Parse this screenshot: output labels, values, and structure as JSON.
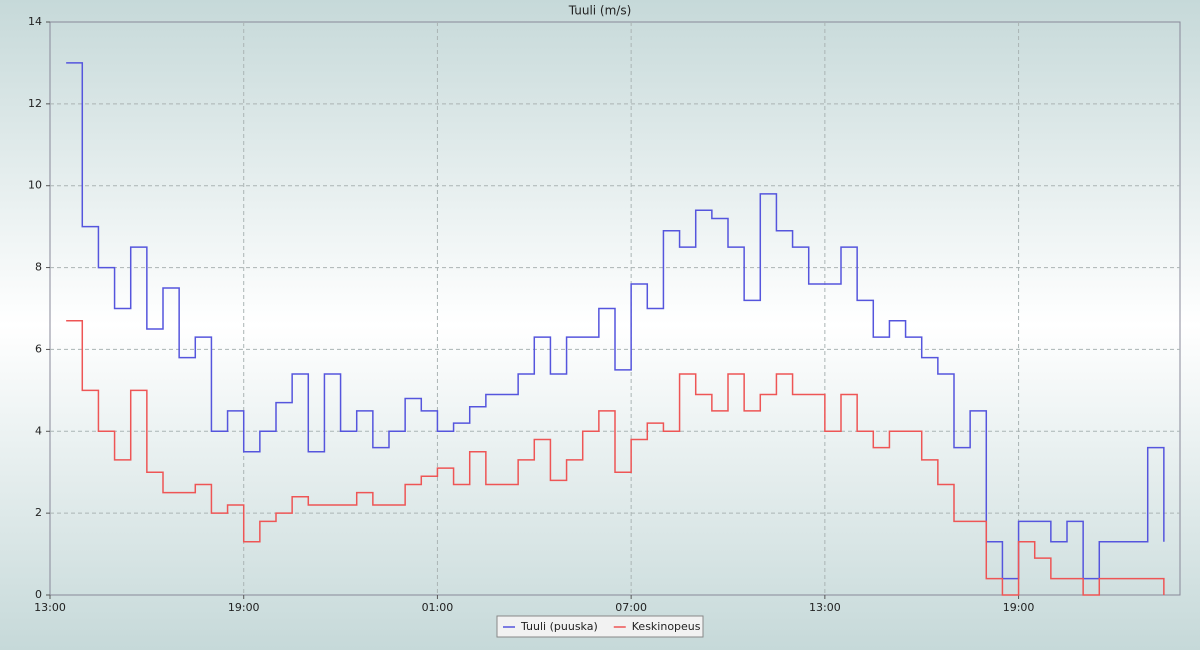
{
  "chart_data": {
    "type": "line",
    "step": true,
    "title": "Tuuli (m/s)",
    "x": [
      0.5,
      1,
      1.5,
      2,
      2.5,
      3,
      3.5,
      4,
      4.5,
      5,
      5.5,
      6,
      6.5,
      7,
      7.5,
      8,
      8.5,
      9,
      9.5,
      10,
      10.5,
      11,
      11.5,
      12,
      12.5,
      13,
      13.5,
      14,
      14.5,
      15,
      15.5,
      16,
      16.5,
      17,
      17.5,
      18,
      18.5,
      19,
      19.5,
      20,
      20.5,
      21,
      21.5,
      22,
      22.5,
      23,
      23.5,
      24,
      24.5,
      25,
      25.5,
      26,
      26.5,
      27,
      27.5,
      28,
      28.5,
      29,
      29.5,
      30,
      30.5,
      31,
      31.5,
      32,
      32.5,
      33,
      33.5,
      34,
      34.5
    ],
    "series": [
      {
        "name": "Tuuli (puuska)",
        "color": "#5555dd",
        "values": [
          13,
          9,
          8,
          7,
          8.5,
          6.5,
          7.5,
          5.8,
          6.3,
          4,
          4.5,
          3.5,
          4,
          4.7,
          5.4,
          3.5,
          5.4,
          4,
          4.5,
          3.6,
          4,
          4.8,
          4.5,
          4,
          4.2,
          4.6,
          4.9,
          4.9,
          5.4,
          6.3,
          5.4,
          6.3,
          6.3,
          7,
          5.5,
          7.6,
          7,
          8.9,
          8.5,
          9.4,
          9.2,
          8.5,
          7.2,
          9.8,
          8.9,
          8.5,
          7.6,
          7.6,
          8.5,
          7.2,
          6.3,
          6.7,
          6.3,
          5.8,
          5.4,
          3.6,
          4.5,
          1.3,
          0.4,
          1.8,
          1.8,
          1.3,
          1.8,
          0.4,
          1.3,
          1.3,
          1.3,
          3.6,
          1.3
        ]
      },
      {
        "name": "Keskinopeus",
        "color": "#ee5555",
        "values": [
          6.7,
          5,
          4,
          3.3,
          5,
          3,
          2.5,
          2.5,
          2.7,
          2,
          2.2,
          1.3,
          1.8,
          2,
          2.4,
          2.2,
          2.2,
          2.2,
          2.5,
          2.2,
          2.2,
          2.7,
          2.9,
          3.1,
          2.7,
          3.5,
          2.7,
          2.7,
          3.3,
          3.8,
          2.8,
          3.3,
          4,
          4.5,
          3,
          3.8,
          4.2,
          4,
          5.4,
          4.9,
          4.5,
          5.4,
          4.5,
          4.9,
          5.4,
          4.9,
          4.9,
          4,
          4.9,
          4,
          3.6,
          4,
          4,
          3.3,
          2.7,
          1.8,
          1.8,
          0.4,
          0,
          1.3,
          0.9,
          0.4,
          0.4,
          0,
          0.4,
          0.4,
          0.4,
          0.4,
          0
        ]
      }
    ],
    "xlim": [
      0,
      35
    ],
    "xticks": [
      {
        "value": 0,
        "label": "13:00"
      },
      {
        "value": 6,
        "label": "19:00"
      },
      {
        "value": 12,
        "label": "01:00"
      },
      {
        "value": 18,
        "label": "07:00"
      },
      {
        "value": 24,
        "label": "13:00"
      },
      {
        "value": 30,
        "label": "19:00"
      }
    ],
    "ylim": [
      0,
      14
    ],
    "yticks": [
      0,
      2,
      4,
      6,
      8,
      10,
      12,
      14
    ],
    "grid": true,
    "legend": "bottom"
  }
}
